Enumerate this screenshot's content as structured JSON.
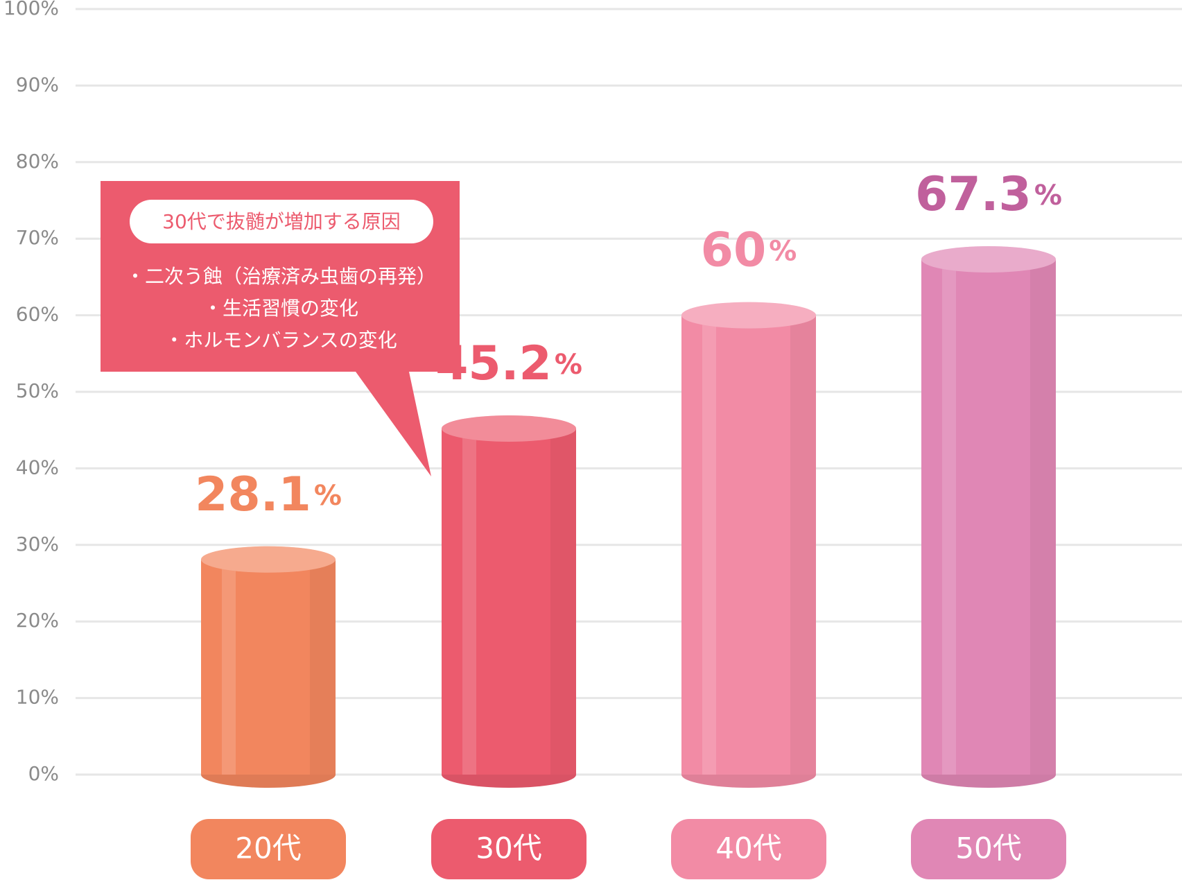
{
  "chart_data": {
    "type": "bar",
    "categories": [
      "20代",
      "30代",
      "40代",
      "50代"
    ],
    "values": [
      28.1,
      45.2,
      60,
      67.3
    ],
    "value_labels": [
      "28.1%",
      "45.2%",
      "60%",
      "67.3%"
    ],
    "colors": [
      "#f2865e",
      "#ec5b6e",
      "#f28ba5",
      "#e087b5"
    ],
    "label_colors": [
      "#f2865e",
      "#ec5b6e",
      "#f28ba5",
      "#c0609c"
    ],
    "ylim": [
      0,
      100
    ],
    "yticks": [
      {
        "value": 0,
        "label": "0%"
      },
      {
        "value": 10,
        "label": "10%"
      },
      {
        "value": 20,
        "label": "20%"
      },
      {
        "value": 30,
        "label": "30%"
      },
      {
        "value": 40,
        "label": "40%"
      },
      {
        "value": 50,
        "label": "50%"
      },
      {
        "value": 60,
        "label": "60%"
      },
      {
        "value": 70,
        "label": "70%"
      },
      {
        "value": 80,
        "label": "80%"
      },
      {
        "value": 90,
        "label": "90%"
      },
      {
        "value": 100,
        "label": "100%"
      }
    ],
    "grid": true,
    "annotation": {
      "title": "30代で抜髄が増加する原因",
      "items": [
        "・二次う蝕（治療済み虫歯の再発）",
        "・生活習慣の変化",
        "・ホルモンバランスの変化"
      ],
      "color": "#ec5b6e"
    }
  }
}
